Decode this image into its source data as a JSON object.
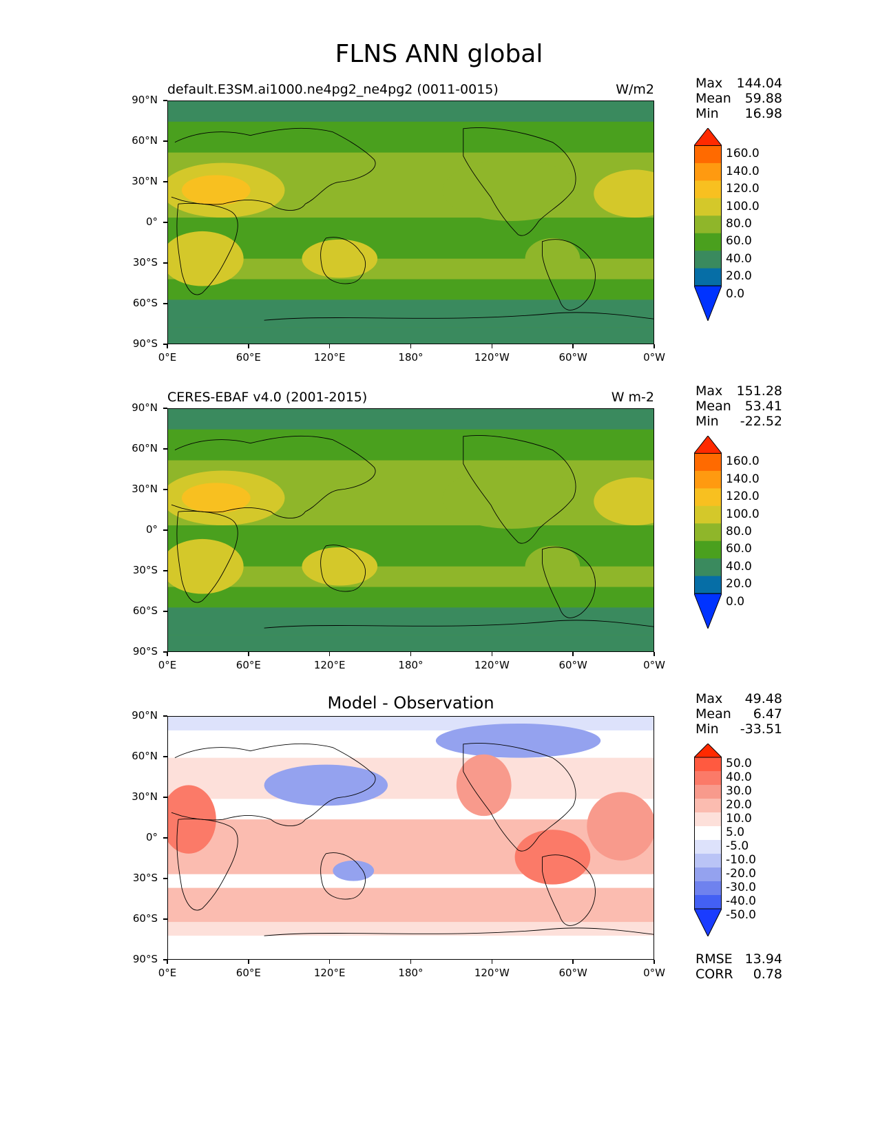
{
  "figure_title": "FLNS ANN global",
  "lon_ticks": [
    "0°E",
    "60°E",
    "120°E",
    "180°",
    "120°W",
    "60°W",
    "0°W"
  ],
  "lat_ticks": [
    "90°N",
    "60°N",
    "30°N",
    "0°",
    "30°S",
    "60°S",
    "90°S"
  ],
  "panels": [
    {
      "title": "default.E3SM.ai1000.ne4pg2_ne4pg2 (0011-0015)",
      "units": "W/m2",
      "stats": {
        "max_label": "Max",
        "max": "144.04",
        "mean_label": "Mean",
        "mean": "59.88",
        "min_label": "Min",
        "min": "16.98"
      },
      "colorbar": {
        "levels": [
          "160.0",
          "140.0",
          "120.0",
          "100.0",
          "80.0",
          "60.0",
          "40.0",
          "20.0",
          "0.0"
        ],
        "colors": [
          "#ff2a00",
          "#ff6a00",
          "#ff9a10",
          "#f8c020",
          "#d4c82a",
          "#8fb62a",
          "#4aa01e",
          "#3a8a5e",
          "#066ea6",
          "#0033ff"
        ]
      }
    },
    {
      "title": "CERES-EBAF v4.0 (2001-2015)",
      "units": "W m-2",
      "stats": {
        "max_label": "Max",
        "max": "151.28",
        "mean_label": "Mean",
        "mean": "53.41",
        "min_label": "Min",
        "min": "-22.52"
      },
      "colorbar": {
        "levels": [
          "160.0",
          "140.0",
          "120.0",
          "100.0",
          "80.0",
          "60.0",
          "40.0",
          "20.0",
          "0.0"
        ],
        "colors": [
          "#ff2a00",
          "#ff6a00",
          "#ff9a10",
          "#f8c020",
          "#d4c82a",
          "#8fb62a",
          "#4aa01e",
          "#3a8a5e",
          "#066ea6",
          "#0033ff"
        ]
      }
    },
    {
      "title": "Model - Observation",
      "units": "",
      "stats": {
        "max_label": "Max",
        "max": "49.48",
        "mean_label": "Mean",
        "mean": "6.47",
        "min_label": "Min",
        "min": "-33.51"
      },
      "colorbar": {
        "levels": [
          "50.0",
          "40.0",
          "30.0",
          "20.0",
          "10.0",
          "5.0",
          "-5.0",
          "-10.0",
          "-20.0",
          "-30.0",
          "-40.0",
          "-50.0"
        ],
        "colors": [
          "#ff2a00",
          "#ff5a40",
          "#fb7a68",
          "#f89a8c",
          "#fbbcb0",
          "#fde0da",
          "#ffffff",
          "#dde2fb",
          "#bac4f6",
          "#94a2ef",
          "#6f82ee",
          "#4360f4",
          "#1a3cff"
        ]
      },
      "extra_stats": {
        "rmse_label": "RMSE",
        "rmse": "13.94",
        "corr_label": "CORR",
        "corr": "0.78"
      }
    }
  ]
}
